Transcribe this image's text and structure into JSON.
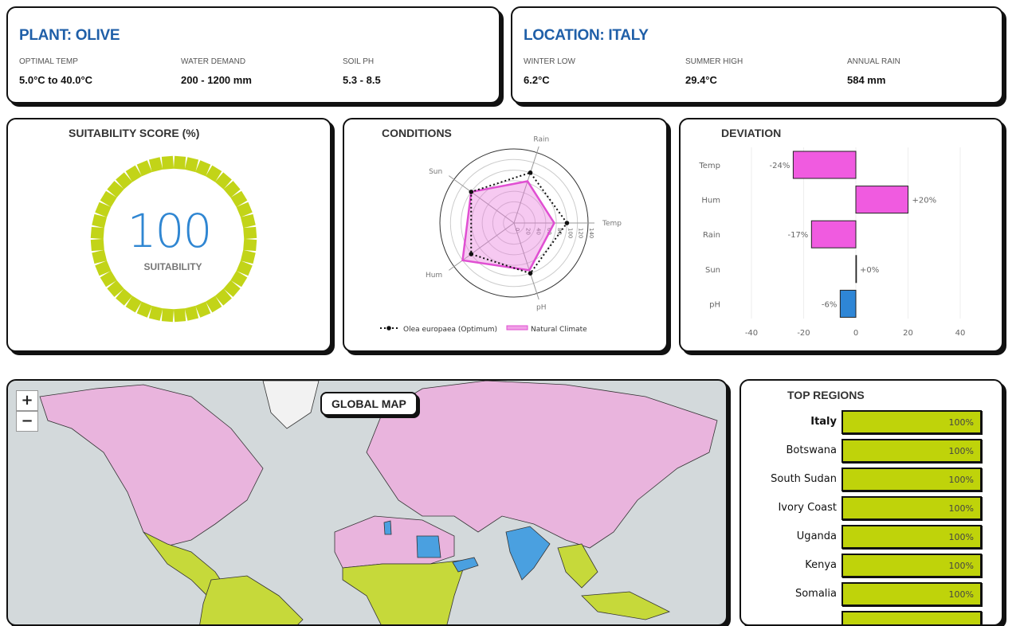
{
  "plant": {
    "title": "PLANT: OLIVE",
    "stats": [
      {
        "label": "OPTIMAL TEMP",
        "value": "5.0°C to 40.0°C"
      },
      {
        "label": "WATER DEMAND",
        "value": "200 - 1200 mm"
      },
      {
        "label": "SOIL PH",
        "value": "5.3 - 8.5"
      }
    ]
  },
  "location": {
    "title": "LOCATION: ITALY",
    "stats": [
      {
        "label": "WINTER LOW",
        "value": "6.2°C"
      },
      {
        "label": "SUMMER HIGH",
        "value": "29.4°C"
      },
      {
        "label": "ANNUAL RAIN",
        "value": "584 mm"
      }
    ]
  },
  "suitability": {
    "title": "SUITABILITY SCORE (%)",
    "value": "100",
    "label": "SUITABILITY",
    "percent": 100,
    "color": "#c2d418"
  },
  "chart_data": [
    {
      "type": "radar",
      "title": "CONDITIONS",
      "axes": [
        "Temp",
        "Rain",
        "Sun",
        "Hum",
        "pH"
      ],
      "ticks": [
        "0",
        "20",
        "40",
        "60",
        "80",
        "100",
        "120",
        "140"
      ],
      "rmax": 140,
      "series": [
        {
          "name": "Olea europaea (Optimum)",
          "values": [
            100,
            100,
            100,
            100,
            100
          ],
          "color": "#111111"
        },
        {
          "name": "Natural Climate",
          "values": [
            76,
            83,
            100,
            120,
            94
          ],
          "color": "#e04fd2"
        }
      ]
    },
    {
      "type": "bar",
      "orientation": "horizontal",
      "title": "DEVIATION",
      "categories": [
        "Temp",
        "Hum",
        "Rain",
        "Sun",
        "pH"
      ],
      "values": [
        -24,
        20,
        -17,
        0,
        -6
      ],
      "labels": [
        "-24%",
        "+20%",
        "-17%",
        "+0%",
        "-6%"
      ],
      "xlim": [
        -40,
        40
      ],
      "xticks": [
        "-40",
        "-20",
        "0",
        "20",
        "40"
      ],
      "colors": {
        "pink": "#f05be0",
        "blue": "#2e86d6"
      }
    }
  ],
  "map": {
    "label": "GLOBAL MAP",
    "zoom_in": "+",
    "zoom_out": "−",
    "colors": {
      "ocean": "#d3d9db",
      "pink": "#e9b4dd",
      "lime": "#c6d93a",
      "blue": "#4aa0e0"
    }
  },
  "regions": {
    "title": "TOP REGIONS",
    "items": [
      {
        "name": "Italy",
        "pct": "100%"
      },
      {
        "name": "Botswana",
        "pct": "100%"
      },
      {
        "name": "South Sudan",
        "pct": "100%"
      },
      {
        "name": "Ivory Coast",
        "pct": "100%"
      },
      {
        "name": "Uganda",
        "pct": "100%"
      },
      {
        "name": "Kenya",
        "pct": "100%"
      },
      {
        "name": "Somalia",
        "pct": "100%"
      }
    ]
  }
}
